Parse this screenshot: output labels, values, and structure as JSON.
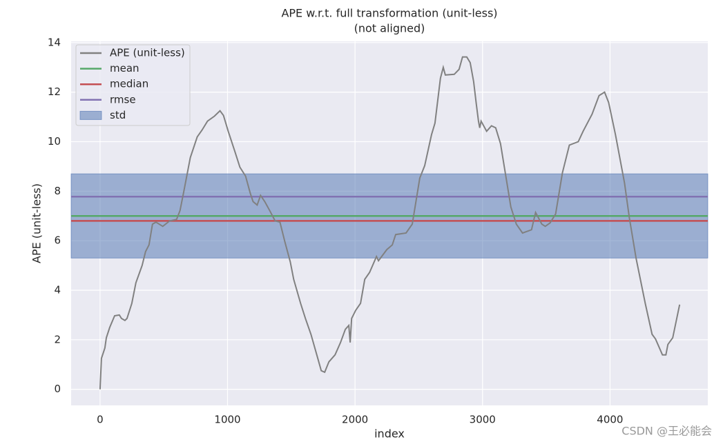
{
  "chart_data": {
    "type": "line",
    "title": "APE w.r.t. full transformation (unit-less)",
    "subtitle": "(not aligned)",
    "xlabel": "index",
    "ylabel": "APE (unit-less)",
    "watermark": "CSDN @王必能会",
    "x": [
      0,
      11,
      38,
      49,
      76,
      114,
      151,
      168,
      195,
      211,
      249,
      281,
      330,
      357,
      384,
      411,
      438,
      492,
      546,
      600,
      627,
      654,
      708,
      762,
      800,
      843,
      897,
      941,
      968,
      1005,
      1059,
      1097,
      1141,
      1178,
      1200,
      1232,
      1259,
      1292,
      1330,
      1373,
      1411,
      1449,
      1492,
      1519,
      1573,
      1611,
      1654,
      1708,
      1735,
      1762,
      1795,
      1843,
      1886,
      1924,
      1951,
      1962,
      1973,
      2005,
      2043,
      2076,
      2114,
      2168,
      2184,
      2249,
      2292,
      2319,
      2400,
      2449,
      2508,
      2546,
      2600,
      2627,
      2670,
      2692,
      2708,
      2778,
      2816,
      2843,
      2876,
      2903,
      2930,
      2951,
      2968,
      2978,
      2989,
      3032,
      3070,
      3103,
      3141,
      3222,
      3265,
      3314,
      3384,
      3416,
      3465,
      3492,
      3530,
      3573,
      3627,
      3681,
      3751,
      3789,
      3859,
      3914,
      3957,
      3989,
      4043,
      4114,
      4151,
      4205,
      4276,
      4330,
      4357,
      4411,
      4438,
      4454,
      4492,
      4546
    ],
    "series": [
      {
        "name": "APE (unit-less)",
        "color": "#808080",
        "values": [
          0,
          1.25,
          1.67,
          2.08,
          2.5,
          2.97,
          3.0,
          2.86,
          2.78,
          2.86,
          3.47,
          4.3,
          5.0,
          5.56,
          5.83,
          6.67,
          6.75,
          6.58,
          6.8,
          6.86,
          7.22,
          7.92,
          9.36,
          10.19,
          10.47,
          10.83,
          11.03,
          11.25,
          11.06,
          10.42,
          9.58,
          8.97,
          8.61,
          7.92,
          7.58,
          7.44,
          7.83,
          7.58,
          7.22,
          6.8,
          6.75,
          5.97,
          5.14,
          4.44,
          3.47,
          2.86,
          2.22,
          1.25,
          0.75,
          0.69,
          1.11,
          1.39,
          1.89,
          2.42,
          2.58,
          1.89,
          2.86,
          3.19,
          3.47,
          4.44,
          4.72,
          5.36,
          5.19,
          5.64,
          5.83,
          6.25,
          6.31,
          6.67,
          8.53,
          9.03,
          10.28,
          10.75,
          12.56,
          13.0,
          12.69,
          12.72,
          12.92,
          13.42,
          13.42,
          13.19,
          12.42,
          11.53,
          10.83,
          10.56,
          10.83,
          10.42,
          10.64,
          10.56,
          9.92,
          7.36,
          6.67,
          6.31,
          6.44,
          7.14,
          6.67,
          6.58,
          6.72,
          7.08,
          8.75,
          9.86,
          10.0,
          10.42,
          11.11,
          11.86,
          12.0,
          11.58,
          10.28,
          8.33,
          6.94,
          5.28,
          3.47,
          2.22,
          2.03,
          1.39,
          1.39,
          1.81,
          2.08,
          3.42
        ]
      }
    ],
    "stats": [
      {
        "name": "mean",
        "color": "#55a868",
        "value": 7.0
      },
      {
        "name": "median",
        "color": "#c44e52",
        "value": 6.8
      },
      {
        "name": "rmse",
        "color": "#8172b2",
        "value": 7.78
      }
    ],
    "std": {
      "name": "std",
      "color": "#4c72b0",
      "value": 1.7
    },
    "xlim": [
      -227,
      4767
    ],
    "ylim": [
      -0.65,
      14.05
    ],
    "xticks": [
      0,
      1000,
      2000,
      3000,
      4000
    ],
    "yticks": [
      0,
      2,
      4,
      6,
      8,
      10,
      12,
      14
    ],
    "grid": true,
    "legend": "upper-left"
  }
}
